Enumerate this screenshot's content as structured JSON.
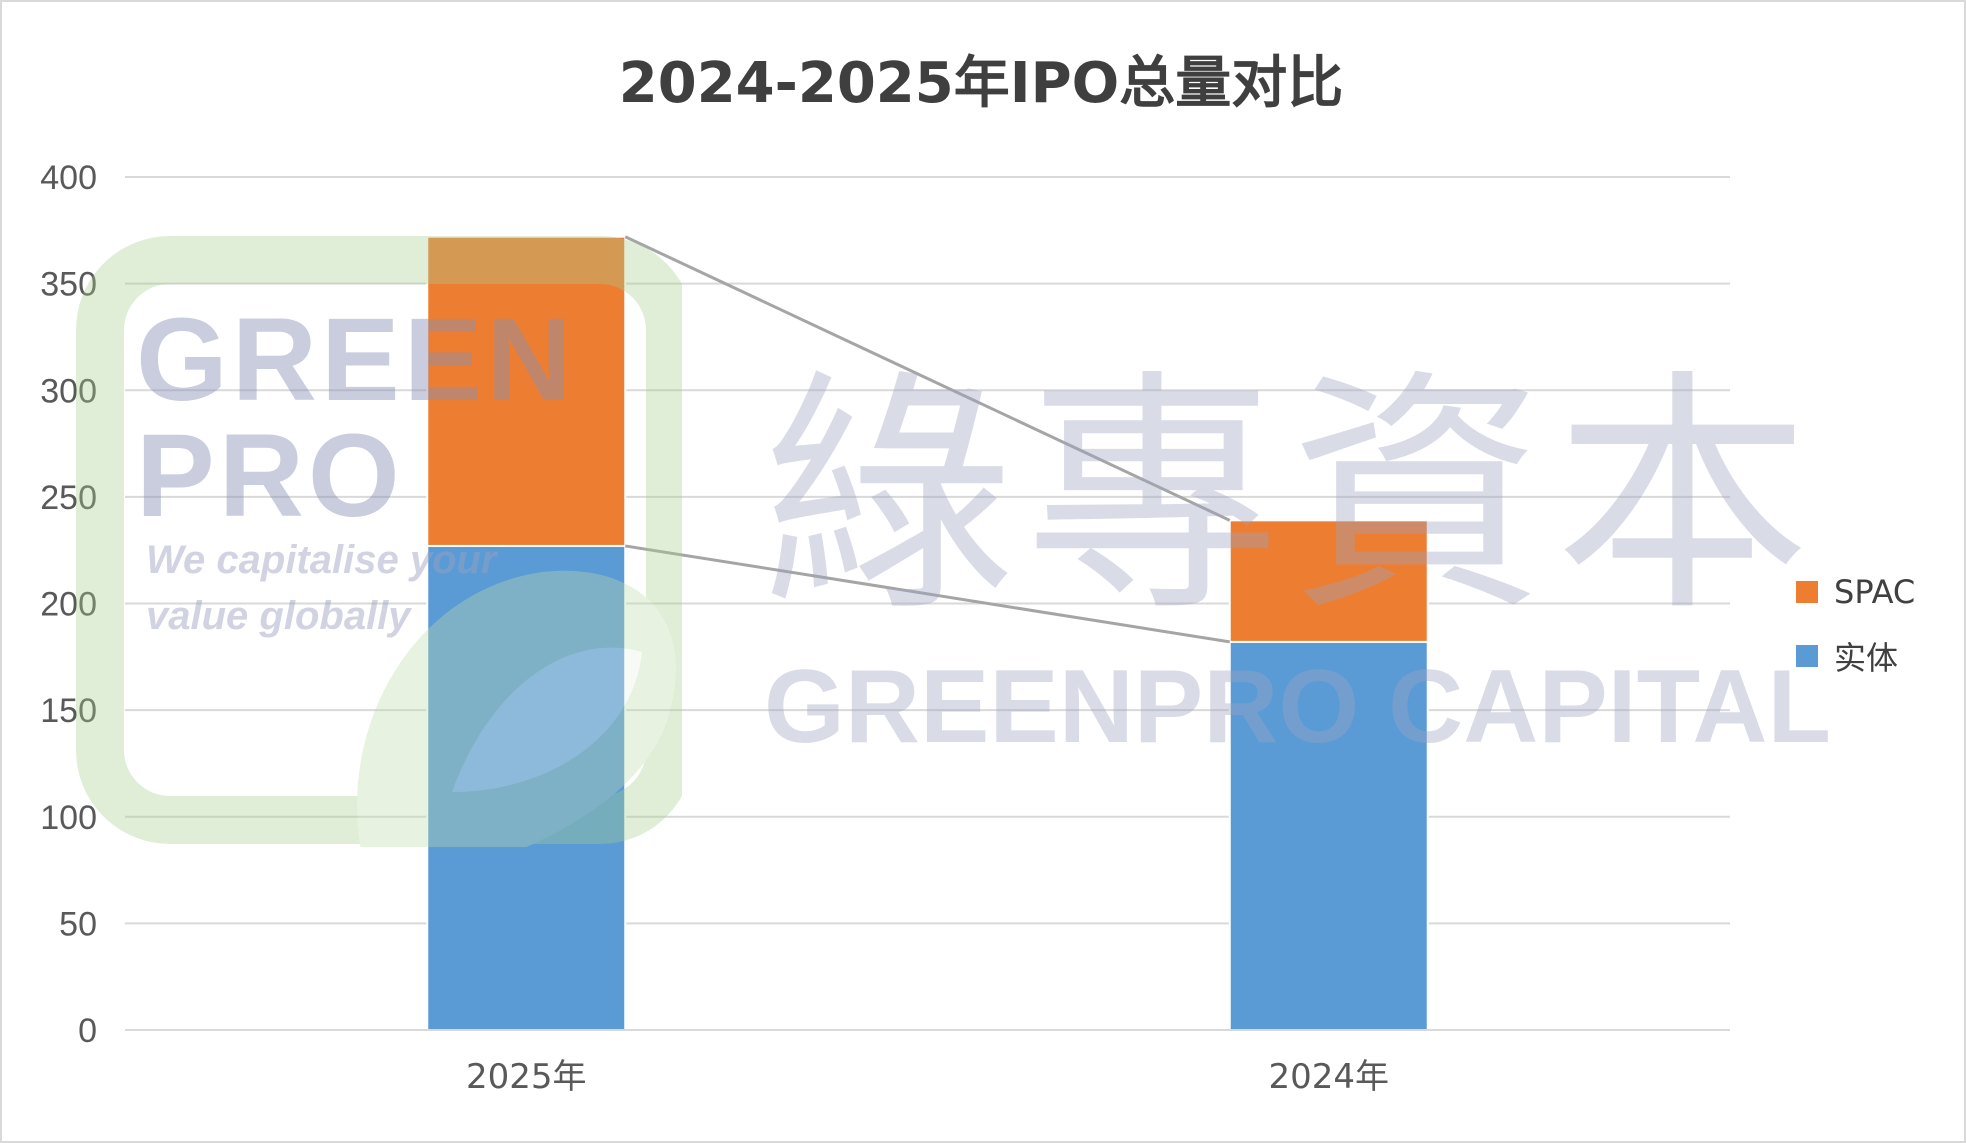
{
  "chart_data": {
    "type": "bar",
    "stacked": true,
    "title": "2024-2025年IPO总量对比",
    "categories": [
      "2025年",
      "2024年"
    ],
    "series": [
      {
        "name": "实体",
        "values": [
          227,
          182
        ],
        "color": "#5b9bd5"
      },
      {
        "name": "SPAC",
        "values": [
          145,
          57
        ],
        "color": "#ed7d31"
      }
    ],
    "ylim": [
      0,
      400
    ],
    "yticks": [
      0,
      50,
      100,
      150,
      200,
      250,
      300,
      350,
      400
    ],
    "grid": true,
    "legend_position": "right",
    "series_lines": true
  },
  "watermark": {
    "logo_line1": "GREEN",
    "logo_line2": "PRO",
    "tagline1": "We capitalise your",
    "tagline2": "value globally",
    "chinese": "綠專資本",
    "english": "GREENPRO CAPITAL"
  }
}
